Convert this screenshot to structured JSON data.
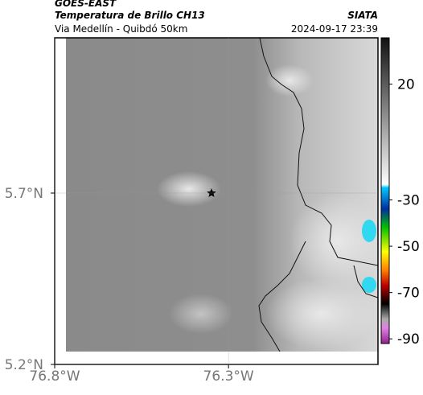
{
  "header": {
    "title": "GOES-EAST",
    "subtitle": "Temperatura de Brillo CH13",
    "location": "Via Medellín - Quibdó 50km",
    "source": "SIATA",
    "datetime": "2024-09-17 23:39"
  },
  "map": {
    "xlim": [
      -76.8,
      -75.87
    ],
    "ylim": [
      5.2,
      6.153
    ],
    "xticks": [
      {
        "value": -76.8,
        "label": "76.8°W"
      },
      {
        "value": -76.3,
        "label": "76.3°W"
      }
    ],
    "yticks": [
      {
        "value": 5.2,
        "label": "5.2°N"
      },
      {
        "value": 5.7,
        "label": "5.7°N"
      }
    ]
  },
  "colorbar": {
    "vlim": [
      40,
      -92
    ],
    "ticks": [
      20,
      -30,
      -50,
      -70,
      -90
    ]
  }
}
